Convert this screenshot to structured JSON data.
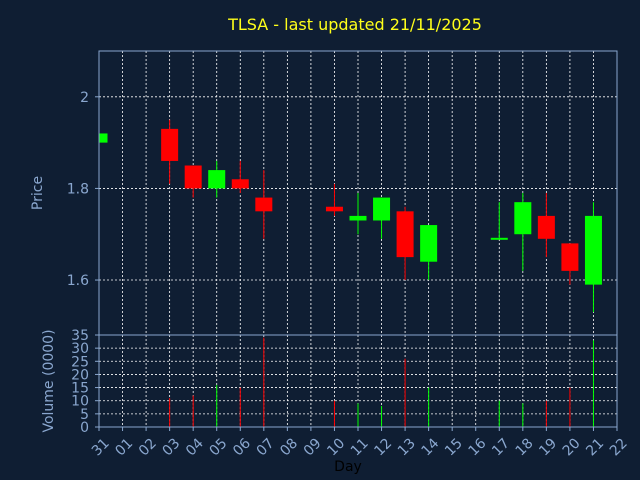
{
  "page": {
    "background": "#0f1e33",
    "frame_color": "#8aa7cf",
    "grid_color": "#ffffff"
  },
  "chart_data": {
    "type": "candlestick",
    "title": "TLSA - last updated 21/11/2025",
    "xlabel": "Day",
    "price_label": "Price",
    "volume_label": "Volume (0000)",
    "x_ticks": [
      "31",
      "01",
      "02",
      "03",
      "04",
      "05",
      "06",
      "07",
      "08",
      "09",
      "10",
      "11",
      "12",
      "13",
      "14",
      "15",
      "16",
      "17",
      "18",
      "19",
      "20",
      "21",
      "22"
    ],
    "price_ticks": [
      "1.6",
      "1.8",
      "2"
    ],
    "price_tick_values": [
      1.6,
      1.8,
      2.0
    ],
    "price_ylim": [
      1.48,
      2.1
    ],
    "volume_ticks": [
      "0",
      "5",
      "10",
      "15",
      "20",
      "25",
      "30",
      "35"
    ],
    "volume_tick_values": [
      0,
      5,
      10,
      15,
      20,
      25,
      30,
      35
    ],
    "volume_ylim": [
      0,
      35
    ],
    "up_color": "#00ff00",
    "down_color": "#ff0000",
    "grid": true,
    "candles": [
      {
        "day": "31",
        "open": 1.9,
        "close": 1.92,
        "high": 1.92,
        "low": 1.9,
        "volume": 0
      },
      {
        "day": "03",
        "open": 1.93,
        "close": 1.86,
        "high": 1.95,
        "low": 1.81,
        "volume": 11
      },
      {
        "day": "04",
        "open": 1.85,
        "close": 1.8,
        "high": 1.85,
        "low": 1.78,
        "volume": 12
      },
      {
        "day": "05",
        "open": 1.8,
        "close": 1.84,
        "high": 1.86,
        "low": 1.78,
        "volume": 16
      },
      {
        "day": "06",
        "open": 1.82,
        "close": 1.8,
        "high": 1.86,
        "low": 1.79,
        "volume": 15
      },
      {
        "day": "07",
        "open": 1.78,
        "close": 1.75,
        "high": 1.84,
        "low": 1.69,
        "volume": 34
      },
      {
        "day": "10",
        "open": 1.76,
        "close": 1.75,
        "high": 1.81,
        "low": 1.74,
        "volume": 10
      },
      {
        "day": "11",
        "open": 1.73,
        "close": 1.74,
        "high": 1.79,
        "low": 1.7,
        "volume": 9
      },
      {
        "day": "12",
        "open": 1.73,
        "close": 1.78,
        "high": 1.78,
        "low": 1.69,
        "volume": 8
      },
      {
        "day": "13",
        "open": 1.75,
        "close": 1.65,
        "high": 1.76,
        "low": 1.6,
        "volume": 26
      },
      {
        "day": "14",
        "open": 1.64,
        "close": 1.72,
        "high": 1.72,
        "low": 1.6,
        "volume": 15
      },
      {
        "day": "17",
        "open": 1.69,
        "close": 1.69,
        "high": 1.77,
        "low": 1.69,
        "volume": 10
      },
      {
        "day": "18",
        "open": 1.7,
        "close": 1.77,
        "high": 1.79,
        "low": 1.62,
        "volume": 9
      },
      {
        "day": "19",
        "open": 1.74,
        "close": 1.69,
        "high": 1.79,
        "low": 1.65,
        "volume": 10
      },
      {
        "day": "20",
        "open": 1.68,
        "close": 1.62,
        "high": 1.68,
        "low": 1.59,
        "volume": 15
      },
      {
        "day": "21",
        "open": 1.59,
        "close": 1.74,
        "high": 1.77,
        "low": 1.53,
        "volume": 33
      }
    ]
  }
}
